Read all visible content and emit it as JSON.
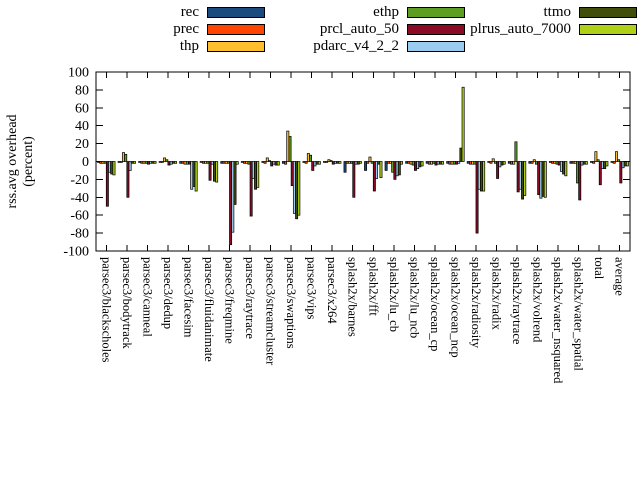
{
  "legend": {
    "items": [
      {
        "label": "rec",
        "color": "#1b4b7e",
        "row": 1,
        "col": 1
      },
      {
        "label": "prec",
        "color": "#ff4500",
        "row": 2,
        "col": 1
      },
      {
        "label": "thp",
        "color": "#fdbf2d",
        "row": 3,
        "col": 1
      },
      {
        "label": "ethp",
        "color": "#5d9e22",
        "row": 1,
        "col": 2
      },
      {
        "label": "prcl_auto_50",
        "color": "#8b0b26",
        "row": 2,
        "col": 2
      },
      {
        "label": "pdarc_v4_2_2",
        "color": "#99ccee",
        "row": 3,
        "col": 2
      },
      {
        "label": "ttmo",
        "color": "#414d0b",
        "row": 1,
        "col": 3
      },
      {
        "label": "plrus_auto_7000",
        "color": "#aed117",
        "row": 2,
        "col": 3
      }
    ]
  },
  "chart_data": {
    "type": "bar",
    "title": "",
    "ylabel_lines": [
      "rss.avg overhead",
      "(percent)"
    ],
    "ylim": [
      -100,
      100
    ],
    "yticks": [
      100,
      80,
      60,
      40,
      20,
      0,
      -20,
      -40,
      -60,
      -80,
      -100
    ],
    "grid": false,
    "legend_position": "top",
    "categories": [
      "parsec3/blackscholes",
      "parsec3/bodytrack",
      "parsec3/canneal",
      "parsec3/dedup",
      "parsec3/facesim",
      "parsec3/fluidanimate",
      "parsec3/freqmine",
      "parsec3/raytrace",
      "parsec3/streamcluster",
      "parsec3/swaptions",
      "parsec3/vips",
      "parsec3/x264",
      "splash2x/barnes",
      "splash2x/fft",
      "splash2x/lu_cb",
      "splash2x/lu_ncb",
      "splash2x/ocean_cp",
      "splash2x/ocean_ncp",
      "splash2x/radiosity",
      "splash2x/radix",
      "splash2x/raytrace",
      "splash2x/volrend",
      "splash2x/water_nsquared",
      "splash2x/water_spatial",
      "total",
      "average"
    ],
    "series": [
      {
        "name": "rec",
        "color": "#1b4b7e",
        "values": [
          -1,
          -1,
          -1,
          -1,
          -2,
          -1,
          -2,
          -1,
          -1,
          -2,
          -1,
          -1,
          -12,
          -10,
          -10,
          -2,
          -2,
          -2,
          -2,
          -1,
          -2,
          -2,
          -1,
          -2,
          -1,
          -1
        ]
      },
      {
        "name": "prec",
        "color": "#ff4500",
        "values": [
          -2,
          -1,
          -2,
          -1,
          -2,
          -2,
          -2,
          -2,
          -2,
          -3,
          -2,
          -1,
          -2,
          -2,
          -2,
          -2,
          -3,
          -3,
          -3,
          -2,
          -3,
          -2,
          -2,
          -2,
          -2,
          -2
        ]
      },
      {
        "name": "thp",
        "color": "#fdbf2d",
        "values": [
          -2,
          10,
          -2,
          4,
          -3,
          -2,
          -2,
          -2,
          4,
          34,
          9,
          2,
          -2,
          5,
          -2,
          -3,
          -3,
          -3,
          -3,
          3,
          -3,
          2,
          -2,
          -2,
          11,
          11
        ]
      },
      {
        "name": "ethp",
        "color": "#5d9e22",
        "values": [
          -2,
          8,
          -2,
          2,
          -3,
          -2,
          -2,
          -3,
          1,
          28,
          7,
          1,
          -2,
          -2,
          -12,
          -4,
          -2,
          -3,
          -3,
          -2,
          22,
          -3,
          -3,
          -24,
          2,
          2
        ]
      },
      {
        "name": "prcl_auto_50",
        "color": "#8b0b26",
        "values": [
          -50,
          -40,
          -3,
          -4,
          -3,
          -21,
          -93,
          -61,
          -5,
          -27,
          -10,
          -3,
          -40,
          -33,
          -20,
          -10,
          -4,
          -3,
          -80,
          -19,
          -34,
          -37,
          -4,
          -43,
          -26,
          -24
        ]
      },
      {
        "name": "pdarc_v4_2_2",
        "color": "#99ccee",
        "values": [
          -12,
          -10,
          -2,
          -3,
          -31,
          -3,
          -79,
          -19,
          -3,
          -58,
          -5,
          -2,
          -3,
          -19,
          -16,
          -8,
          -3,
          -2,
          -31,
          -6,
          -31,
          -41,
          -11,
          -4,
          -8,
          -7
        ]
      },
      {
        "name": "ttmo",
        "color": "#414d0b",
        "values": [
          -14,
          -2,
          -2,
          -2,
          -28,
          -22,
          -48,
          -31,
          -4,
          -64,
          -3,
          -2,
          -3,
          -3,
          -15,
          -6,
          -3,
          15,
          -33,
          -4,
          -42,
          -39,
          -14,
          -3,
          -8,
          -5
        ]
      },
      {
        "name": "plrus_auto_7000",
        "color": "#aed117",
        "values": [
          -15,
          -2,
          -2,
          -2,
          -33,
          -23,
          -3,
          -29,
          -4,
          -60,
          -3,
          -2,
          -2,
          -18,
          -3,
          -5,
          -3,
          83,
          -33,
          -3,
          -38,
          -40,
          -16,
          -3,
          -5,
          -5
        ]
      }
    ]
  }
}
